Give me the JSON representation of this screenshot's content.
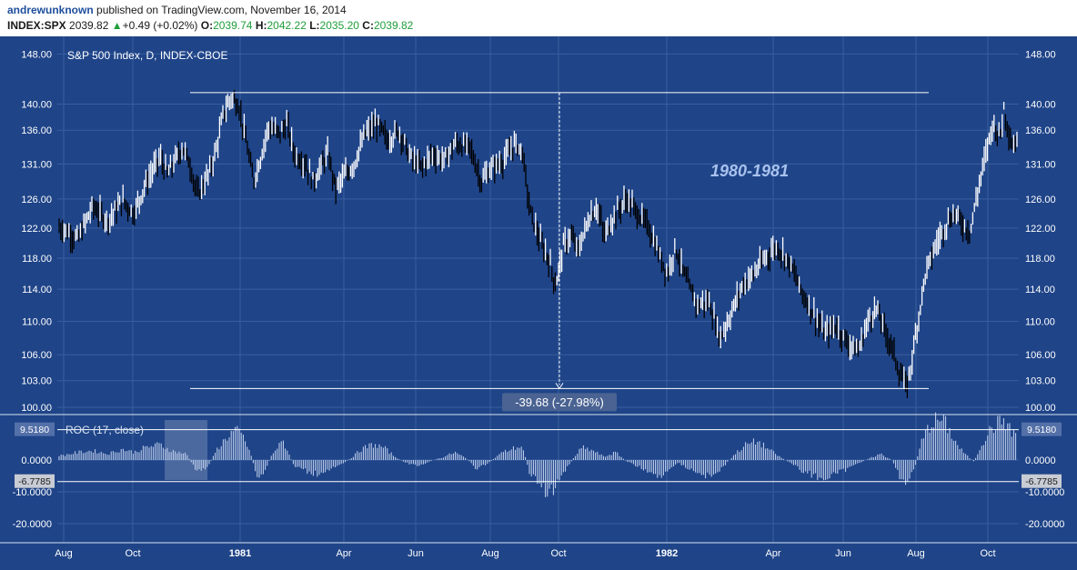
{
  "header": {
    "author": "andrewunknown",
    "published": "published on TradingView.com, November 16, 2014",
    "symbol": "INDEX:SPX",
    "price": "2039.82",
    "change": "+0.49 (+0.02%)",
    "o_label": "O:",
    "o_value": "2039.74",
    "h_label": "H:",
    "h_value": "2042.22",
    "l_label": "L:",
    "l_value": "2035.20",
    "c_label": "C:",
    "c_value": "2039.82"
  },
  "colors": {
    "background": "#1f4488",
    "grid": "#3a5f9e",
    "bar": "#ffffff",
    "bar_down": "#000000",
    "text": "#ffffff",
    "annotation": "#a9c2ee",
    "label_bg": "#4a6392",
    "up": "#1f9e3a"
  },
  "chart_data": [
    {
      "type": "line",
      "title": "S&P 500 Index, D, INDEX-CBOE",
      "yscale": "log",
      "ylim": [
        100,
        148
      ],
      "y_ticks": [
        "148.00",
        "140.00",
        "136.00",
        "131.00",
        "126.00",
        "122.00",
        "118.00",
        "114.00",
        "110.00",
        "106.00",
        "103.00",
        "100.00"
      ],
      "x_ticks": [
        "Aug",
        "Oct",
        "1981",
        "Apr",
        "Jun",
        "Aug",
        "Oct",
        "1982",
        "Apr",
        "Jun",
        "Aug",
        "Oct"
      ],
      "annotation": "1980-1981",
      "measure_label": "-39.68 (-27.98%)",
      "measure_top": 141.8,
      "measure_bottom": 102.1,
      "series": [
        {
          "values": [
            [
              1980.58,
              122
            ],
            [
              1980.62,
              120.5
            ],
            [
              1980.66,
              125
            ],
            [
              1980.7,
              123
            ],
            [
              1980.74,
              125.8
            ],
            [
              1980.77,
              124
            ],
            [
              1980.8,
              128
            ],
            [
              1980.84,
              132
            ],
            [
              1980.86,
              129.5
            ],
            [
              1980.9,
              133.5
            ],
            [
              1980.92,
              131
            ],
            [
              1980.94,
              126.5
            ],
            [
              1980.97,
              129.5
            ],
            [
              1980.99,
              133
            ],
            [
              1981.01,
              138.5
            ],
            [
              1981.03,
              141
            ],
            [
              1981.05,
              140
            ],
            [
              1981.07,
              134.5
            ],
            [
              1981.09,
              128.5
            ],
            [
              1981.11,
              132
            ],
            [
              1981.13,
              136.5
            ],
            [
              1981.16,
              135.5
            ],
            [
              1981.18,
              137
            ],
            [
              1981.2,
              132.5
            ],
            [
              1981.23,
              131
            ],
            [
              1981.25,
              128.5
            ],
            [
              1981.29,
              132.5
            ],
            [
              1981.31,
              127.5
            ],
            [
              1981.33,
              129
            ],
            [
              1981.36,
              131
            ],
            [
              1981.39,
              135.5
            ],
            [
              1981.42,
              137
            ],
            [
              1981.45,
              134.5
            ],
            [
              1981.48,
              136
            ],
            [
              1981.51,
              132
            ],
            [
              1981.54,
              130.5
            ],
            [
              1981.57,
              132.5
            ],
            [
              1981.6,
              131.5
            ],
            [
              1981.63,
              134
            ],
            [
              1981.67,
              133.5
            ],
            [
              1981.7,
              128.5
            ],
            [
              1981.73,
              130.5
            ],
            [
              1981.76,
              131.5
            ],
            [
              1981.79,
              134
            ],
            [
              1981.81,
              133
            ],
            [
              1981.83,
              124.5
            ],
            [
              1981.86,
              120
            ],
            [
              1981.88,
              118
            ],
            [
              1981.9,
              114.5
            ],
            [
              1981.92,
              119.5
            ],
            [
              1981.94,
              121
            ],
            [
              1981.96,
              119
            ],
            [
              1981.99,
              123.5
            ],
            [
              1982.01,
              125
            ],
            [
              1982.03,
              121
            ],
            [
              1982.06,
              124
            ],
            [
              1982.09,
              126
            ],
            [
              1982.12,
              124
            ],
            [
              1982.15,
              122
            ],
            [
              1982.18,
              118
            ],
            [
              1982.2,
              116
            ],
            [
              1982.22,
              119.5
            ],
            [
              1982.25,
              115
            ],
            [
              1982.28,
              112
            ],
            [
              1982.31,
              112.5
            ],
            [
              1982.34,
              108
            ],
            [
              1982.37,
              111
            ],
            [
              1982.4,
              114.5
            ],
            [
              1982.43,
              116
            ],
            [
              1982.46,
              118
            ],
            [
              1982.49,
              119.5
            ],
            [
              1982.51,
              118.5
            ],
            [
              1982.53,
              117
            ],
            [
              1982.56,
              113.5
            ],
            [
              1982.59,
              111
            ],
            [
              1982.62,
              108.5
            ],
            [
              1982.65,
              109.5
            ],
            [
              1982.68,
              107.5
            ],
            [
              1982.71,
              106.5
            ],
            [
              1982.74,
              110.5
            ],
            [
              1982.76,
              111.5
            ],
            [
              1982.78,
              109
            ],
            [
              1982.8,
              107
            ],
            [
              1982.82,
              104
            ],
            [
              1982.84,
              102.2
            ],
            [
              1982.85,
              104.5
            ],
            [
              1982.87,
              110
            ],
            [
              1982.89,
              116
            ],
            [
              1982.92,
              120
            ],
            [
              1982.95,
              123
            ],
            [
              1982.97,
              124
            ],
            [
              1982.99,
              122.5
            ],
            [
              1983.01,
              121.5
            ],
            [
              1983.03,
              127
            ],
            [
              1983.05,
              132
            ],
            [
              1983.07,
              137
            ],
            [
              1983.09,
              135
            ],
            [
              1983.1,
              139.5
            ],
            [
              1983.12,
              134
            ]
          ]
        }
      ]
    },
    {
      "type": "bar",
      "title": "ROC (17, close)",
      "ylim": [
        -27,
        13
      ],
      "y_ticks": [
        "0.0000",
        "-10.0000",
        "-20.0000"
      ],
      "hline_upper": 9.518,
      "hline_lower": -6.7785,
      "upper_label": "9.5180",
      "lower_label": "-6.7785",
      "series": [
        {
          "values": [
            [
              1980.58,
              1.5
            ],
            [
              1980.62,
              2.5
            ],
            [
              1980.66,
              3
            ],
            [
              1980.7,
              2
            ],
            [
              1980.74,
              3.5
            ],
            [
              1980.77,
              2.5
            ],
            [
              1980.8,
              4
            ],
            [
              1980.84,
              5
            ],
            [
              1980.87,
              3
            ],
            [
              1980.91,
              2
            ],
            [
              1980.94,
              -4
            ],
            [
              1980.97,
              -2
            ],
            [
              1980.99,
              3
            ],
            [
              1981.02,
              7.5
            ],
            [
              1981.04,
              9.5
            ],
            [
              1981.06,
              8
            ],
            [
              1981.08,
              3
            ],
            [
              1981.1,
              -5.5
            ],
            [
              1981.12,
              -4
            ],
            [
              1981.14,
              2
            ],
            [
              1981.17,
              6
            ],
            [
              1981.2,
              -2
            ],
            [
              1981.23,
              -3.5
            ],
            [
              1981.26,
              -4.5
            ],
            [
              1981.29,
              -3
            ],
            [
              1981.32,
              -2
            ],
            [
              1981.35,
              0.5
            ],
            [
              1981.38,
              3.5
            ],
            [
              1981.41,
              5
            ],
            [
              1981.44,
              4
            ],
            [
              1981.47,
              1
            ],
            [
              1981.5,
              -1
            ],
            [
              1981.53,
              -2
            ],
            [
              1981.56,
              -0.5
            ],
            [
              1981.6,
              1
            ],
            [
              1981.63,
              2.5
            ],
            [
              1981.66,
              0.5
            ],
            [
              1981.69,
              -3
            ],
            [
              1981.72,
              -1
            ],
            [
              1981.75,
              2
            ],
            [
              1981.78,
              3.5
            ],
            [
              1981.81,
              4.5
            ],
            [
              1981.83,
              -4
            ],
            [
              1981.86,
              -8
            ],
            [
              1981.88,
              -11
            ],
            [
              1981.9,
              -9
            ],
            [
              1981.92,
              -4
            ],
            [
              1981.95,
              1
            ],
            [
              1981.97,
              4
            ],
            [
              1982.0,
              3
            ],
            [
              1982.03,
              1
            ],
            [
              1982.06,
              2.5
            ],
            [
              1982.09,
              -0.5
            ],
            [
              1982.12,
              -2
            ],
            [
              1982.15,
              -4
            ],
            [
              1982.18,
              -6
            ],
            [
              1982.2,
              -3
            ],
            [
              1982.23,
              -1
            ],
            [
              1982.26,
              -3
            ],
            [
              1982.29,
              -4.5
            ],
            [
              1982.32,
              -5.5
            ],
            [
              1982.35,
              -2
            ],
            [
              1982.38,
              2
            ],
            [
              1982.41,
              5
            ],
            [
              1982.44,
              6
            ],
            [
              1982.47,
              3.5
            ],
            [
              1982.5,
              1
            ],
            [
              1982.53,
              -1
            ],
            [
              1982.56,
              -3.5
            ],
            [
              1982.59,
              -5
            ],
            [
              1982.62,
              -6
            ],
            [
              1982.65,
              -4.5
            ],
            [
              1982.68,
              -3
            ],
            [
              1982.71,
              -1
            ],
            [
              1982.74,
              0.5
            ],
            [
              1982.77,
              2
            ],
            [
              1982.8,
              0
            ],
            [
              1982.82,
              -5
            ],
            [
              1982.84,
              -7.5
            ],
            [
              1982.86,
              -3
            ],
            [
              1982.88,
              6
            ],
            [
              1982.9,
              11
            ],
            [
              1982.92,
              13
            ],
            [
              1982.94,
              12.5
            ],
            [
              1982.96,
              8
            ],
            [
              1982.98,
              4
            ],
            [
              1983.0,
              1.5
            ],
            [
              1983.02,
              -0.5
            ],
            [
              1983.04,
              5
            ],
            [
              1983.06,
              9
            ],
            [
              1983.08,
              11.5
            ],
            [
              1983.1,
              13
            ],
            [
              1983.12,
              9
            ]
          ]
        }
      ]
    }
  ]
}
